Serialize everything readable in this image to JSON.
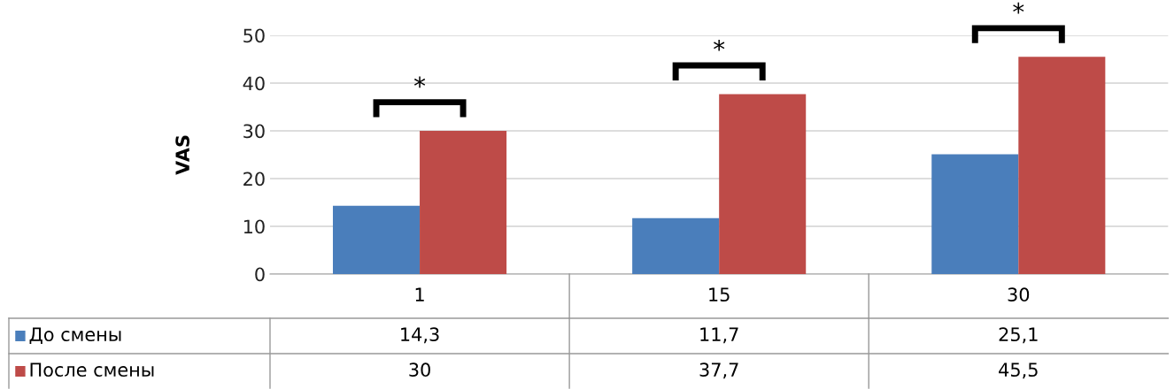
{
  "chart_data": {
    "type": "bar",
    "ylabel": "VAS",
    "categories": [
      "1",
      "15",
      "30"
    ],
    "series": [
      {
        "name": "До смены",
        "color": "#4a7ebb",
        "values": [
          14.3,
          11.7,
          25.1
        ],
        "value_labels": [
          "14,3",
          "11,7",
          "25,1"
        ]
      },
      {
        "name": "После смены",
        "color": "#be4b48",
        "values": [
          30,
          37.7,
          45.5
        ],
        "value_labels": [
          "30",
          "37,7",
          "45,5"
        ]
      }
    ],
    "ylim": [
      0,
      50
    ],
    "yticks": [
      0,
      10,
      20,
      30,
      40,
      50
    ],
    "grid": "y",
    "legend": "bottom",
    "annotations": [
      "*",
      "*",
      "*"
    ]
  }
}
